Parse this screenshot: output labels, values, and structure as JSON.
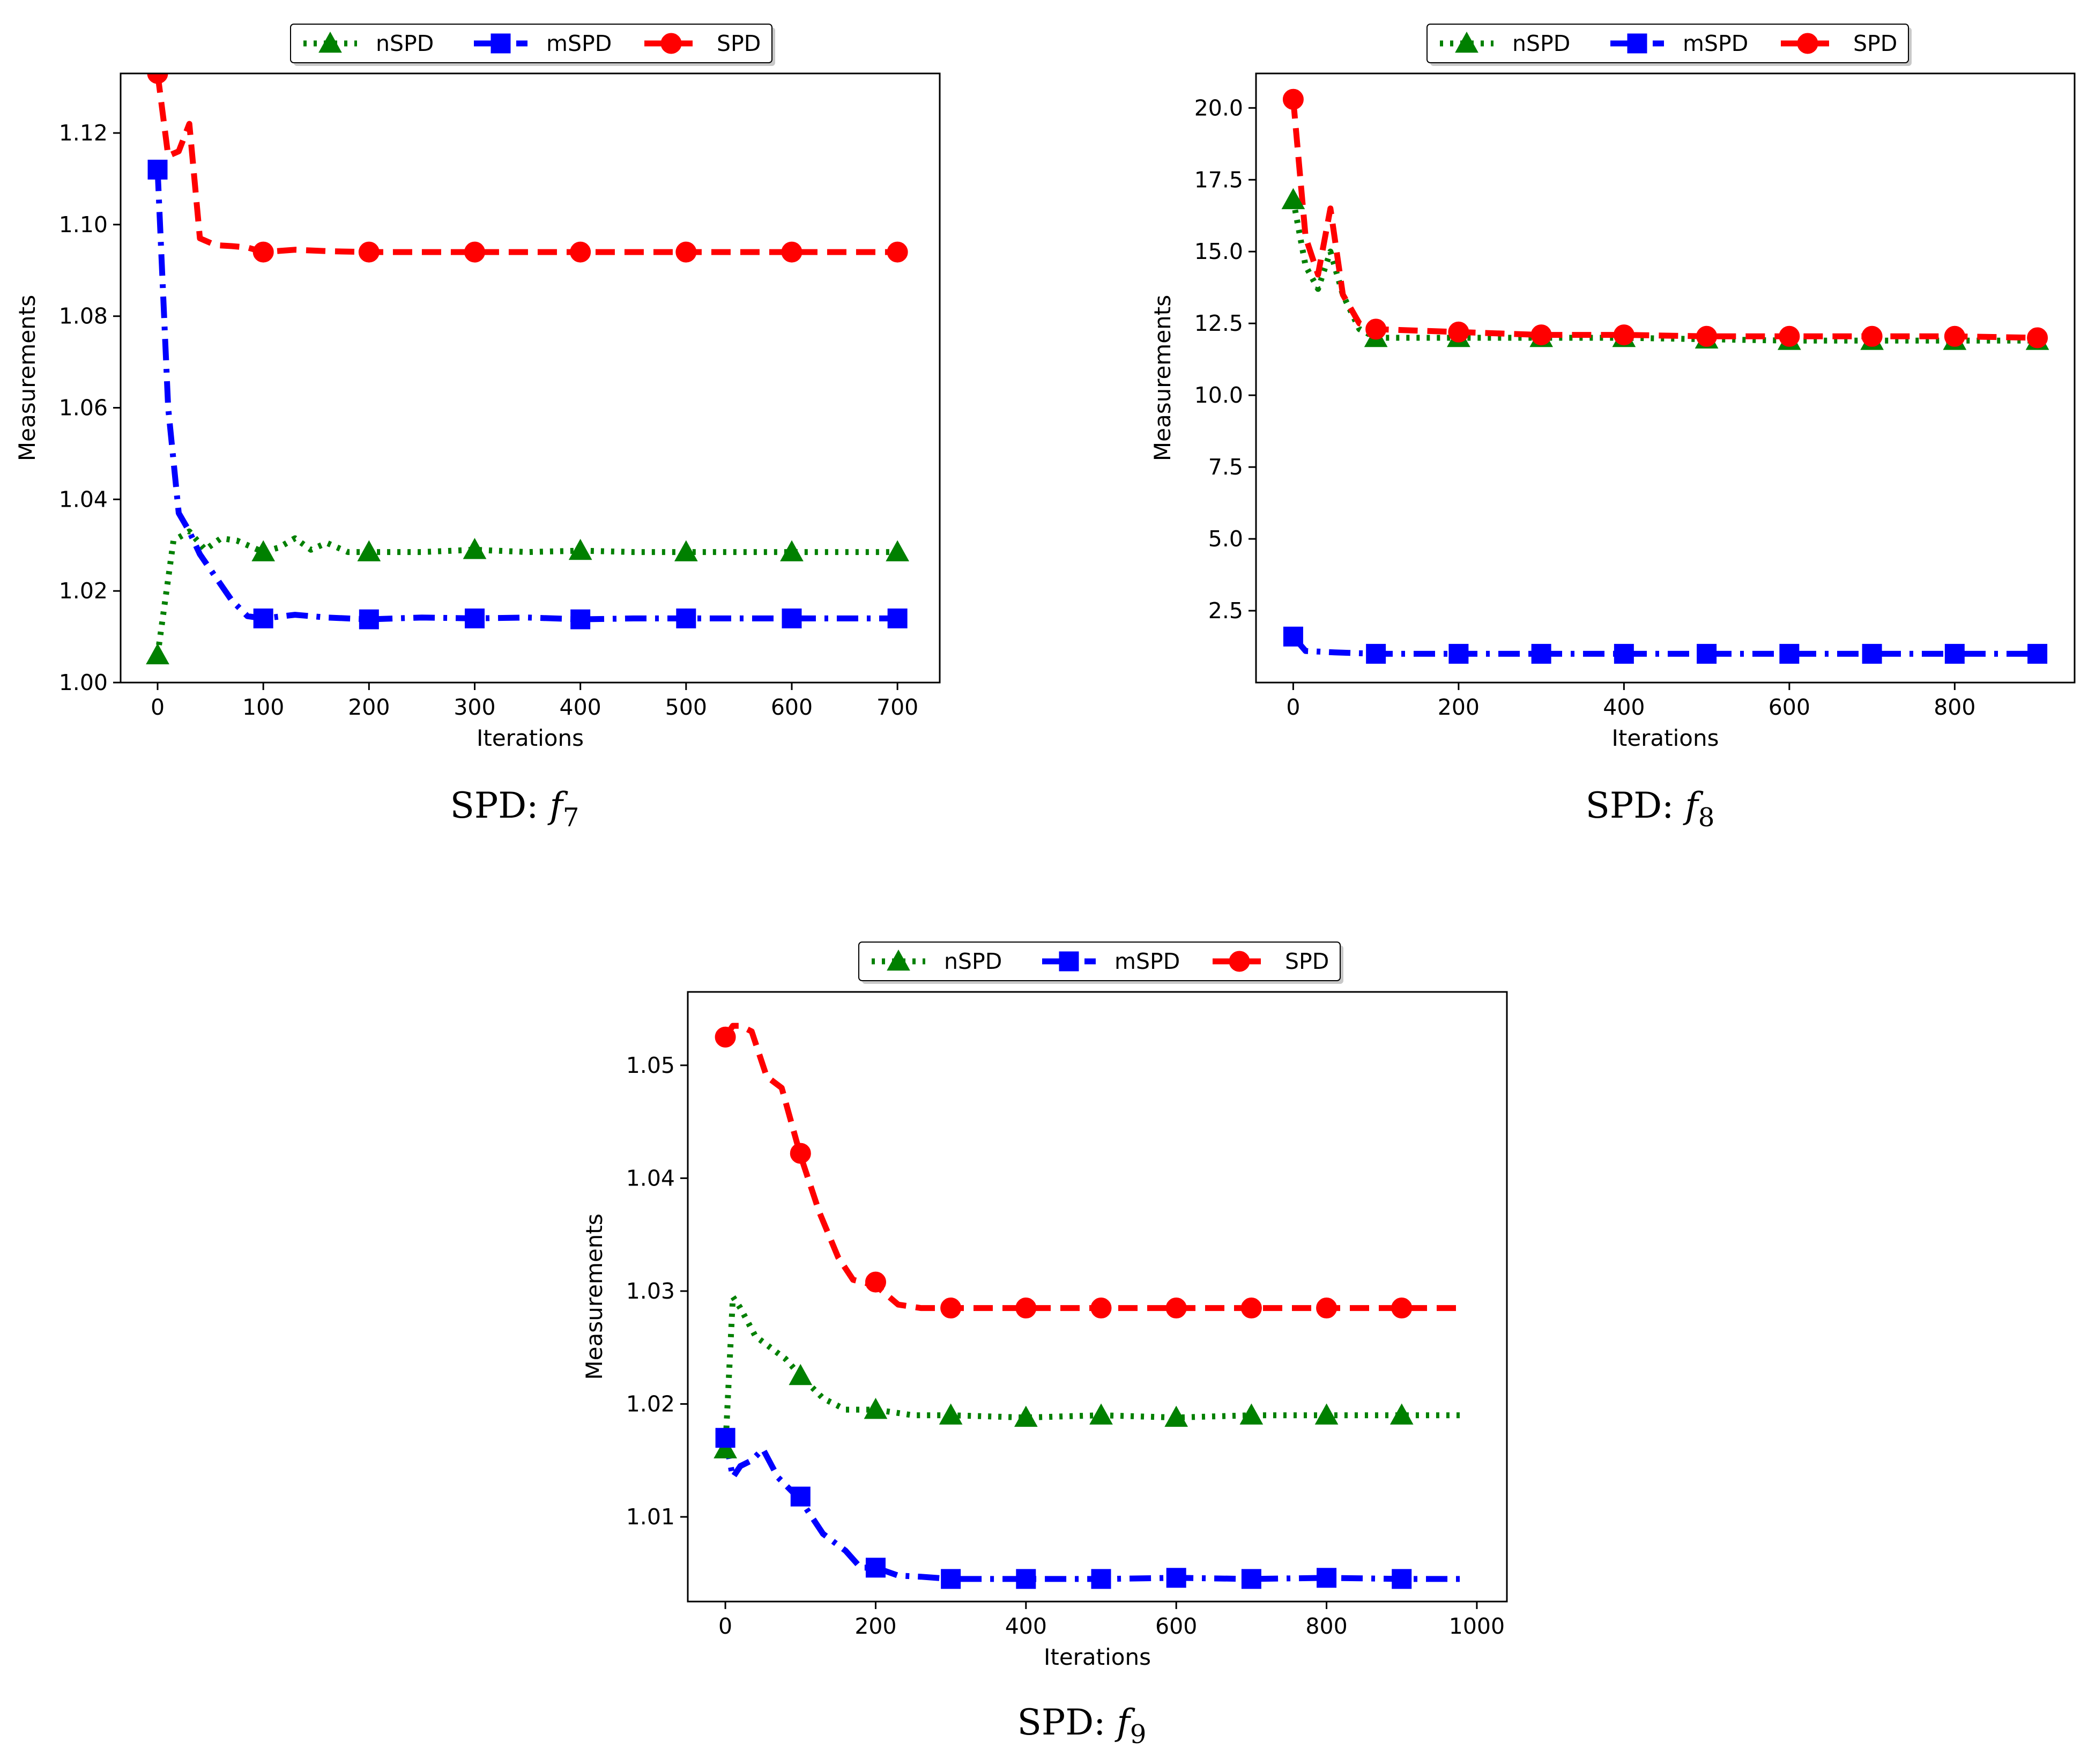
{
  "colors": {
    "nSPD": "#008000",
    "mSPD": "#0000ff",
    "SPD": "#ff0000"
  },
  "chart_data": [
    {
      "type": "line",
      "caption_prefix": "SPD: ",
      "caption_func": "f",
      "caption_sub": "7",
      "xlabel": "Iterations",
      "ylabel": "Measurements",
      "xlim": [
        -35,
        740
      ],
      "ylim": [
        1.0,
        1.133
      ],
      "xticks": [
        0,
        100,
        200,
        300,
        400,
        500,
        600,
        700
      ],
      "xtick_labels": [
        "0",
        "100",
        "200",
        "300",
        "400",
        "500",
        "600",
        "700"
      ],
      "yticks": [
        1.0,
        1.02,
        1.04,
        1.06,
        1.08,
        1.1,
        1.12
      ],
      "ytick_labels": [
        "1.00",
        "1.02",
        "1.04",
        "1.06",
        "1.08",
        "1.10",
        "1.12"
      ],
      "legend": [
        "nSPD",
        "mSPD",
        "SPD"
      ],
      "legend_position": "top-center",
      "series": [
        {
          "name": "nSPD",
          "marker": "triangle",
          "style": "dotted",
          "x": [
            0,
            15,
            30,
            45,
            60,
            75,
            100,
            115,
            130,
            145,
            160,
            180,
            200,
            250,
            300,
            350,
            400,
            450,
            500,
            550,
            600,
            650,
            700
          ],
          "y": [
            1.006,
            1.031,
            1.033,
            1.029,
            1.0315,
            1.031,
            1.0285,
            1.0295,
            1.0315,
            1.029,
            1.0305,
            1.0285,
            1.0285,
            1.0285,
            1.029,
            1.0285,
            1.0288,
            1.0285,
            1.0285,
            1.0285,
            1.0285,
            1.0285,
            1.0285
          ],
          "marker_x": [
            0,
            100,
            200,
            300,
            400,
            500,
            600,
            700
          ],
          "marker_y": [
            1.006,
            1.0285,
            1.0285,
            1.029,
            1.0288,
            1.0285,
            1.0285,
            1.0285
          ]
        },
        {
          "name": "mSPD",
          "marker": "square",
          "style": "dashdot",
          "x": [
            0,
            10,
            20,
            30,
            40,
            55,
            70,
            85,
            100,
            130,
            160,
            200,
            250,
            300,
            350,
            400,
            450,
            500,
            550,
            600,
            650,
            700
          ],
          "y": [
            1.112,
            1.06,
            1.037,
            1.033,
            1.028,
            1.023,
            1.018,
            1.0145,
            1.014,
            1.0148,
            1.0142,
            1.0138,
            1.0142,
            1.014,
            1.0142,
            1.0138,
            1.014,
            1.014,
            1.014,
            1.014,
            1.014,
            1.014
          ],
          "marker_x": [
            0,
            100,
            200,
            300,
            400,
            500,
            600,
            700
          ],
          "marker_y": [
            1.112,
            1.014,
            1.0138,
            1.014,
            1.0138,
            1.014,
            1.014,
            1.014
          ]
        },
        {
          "name": "SPD",
          "marker": "circle",
          "style": "dashed",
          "x": [
            0,
            10,
            20,
            30,
            40,
            55,
            70,
            85,
            100,
            130,
            160,
            200,
            250,
            300,
            350,
            400,
            450,
            500,
            550,
            600,
            650,
            700
          ],
          "y": [
            1.133,
            1.115,
            1.116,
            1.122,
            1.097,
            1.0955,
            1.0953,
            1.095,
            1.094,
            1.0945,
            1.0942,
            1.094,
            1.094,
            1.094,
            1.094,
            1.094,
            1.094,
            1.094,
            1.094,
            1.094,
            1.094,
            1.094
          ],
          "marker_x": [
            0,
            100,
            200,
            300,
            400,
            500,
            600,
            700
          ],
          "marker_y": [
            1.133,
            1.094,
            1.094,
            1.094,
            1.094,
            1.094,
            1.094,
            1.094
          ]
        }
      ]
    },
    {
      "type": "line",
      "caption_prefix": "SPD: ",
      "caption_func": "f",
      "caption_sub": "8",
      "xlabel": "Iterations",
      "ylabel": "Measurements",
      "xlim": [
        -45,
        945
      ],
      "ylim": [
        0.0,
        21.2
      ],
      "xticks": [
        0,
        200,
        400,
        600,
        800
      ],
      "xtick_labels": [
        "0",
        "200",
        "400",
        "600",
        "800"
      ],
      "yticks": [
        2.5,
        5.0,
        7.5,
        10.0,
        12.5,
        15.0,
        17.5,
        20.0
      ],
      "ytick_labels": [
        "2.5",
        "5.0",
        "7.5",
        "10.0",
        "12.5",
        "15.0",
        "17.5",
        "20.0"
      ],
      "legend": [
        "nSPD",
        "mSPD",
        "SPD"
      ],
      "legend_position": "top-center",
      "series": [
        {
          "name": "nSPD",
          "marker": "triangle",
          "style": "dotted",
          "x": [
            0,
            15,
            30,
            45,
            60,
            80,
            100,
            200,
            300,
            400,
            500,
            600,
            700,
            800,
            900
          ],
          "y": [
            16.8,
            14.5,
            13.7,
            15.0,
            13.5,
            12.3,
            12.0,
            12.0,
            12.0,
            12.0,
            11.95,
            11.9,
            11.9,
            11.9,
            11.9
          ],
          "marker_x": [
            0,
            100,
            200,
            300,
            400,
            500,
            600,
            700,
            800,
            900
          ],
          "marker_y": [
            16.8,
            12.0,
            12.0,
            12.0,
            12.0,
            11.95,
            11.9,
            11.9,
            11.9,
            11.9
          ]
        },
        {
          "name": "mSPD",
          "marker": "square",
          "style": "dashdot",
          "x": [
            0,
            15,
            50,
            100,
            200,
            300,
            400,
            500,
            600,
            700,
            800,
            900
          ],
          "y": [
            1.6,
            1.1,
            1.05,
            1.0,
            1.0,
            1.0,
            1.0,
            1.0,
            1.0,
            1.0,
            1.0,
            1.0
          ],
          "marker_x": [
            0,
            100,
            200,
            300,
            400,
            500,
            600,
            700,
            800,
            900
          ],
          "marker_y": [
            1.6,
            1.0,
            1.0,
            1.0,
            1.0,
            1.0,
            1.0,
            1.0,
            1.0,
            1.0
          ]
        },
        {
          "name": "SPD",
          "marker": "circle",
          "style": "dashed",
          "x": [
            0,
            15,
            30,
            45,
            60,
            80,
            100,
            200,
            300,
            400,
            500,
            600,
            700,
            800,
            900
          ],
          "y": [
            20.3,
            15.5,
            14.2,
            16.5,
            13.5,
            12.5,
            12.3,
            12.2,
            12.1,
            12.1,
            12.05,
            12.05,
            12.05,
            12.05,
            12.0
          ],
          "marker_x": [
            0,
            100,
            200,
            300,
            400,
            500,
            600,
            700,
            800,
            900
          ],
          "marker_y": [
            20.3,
            12.3,
            12.2,
            12.1,
            12.1,
            12.05,
            12.05,
            12.05,
            12.05,
            12.0
          ]
        }
      ]
    },
    {
      "type": "line",
      "caption_prefix": "SPD: ",
      "caption_func": "f",
      "caption_sub": "9",
      "xlabel": "Iterations",
      "ylabel": "Measurements",
      "xlim": [
        -50,
        1040
      ],
      "ylim": [
        1.0025,
        1.0565
      ],
      "xticks": [
        0,
        200,
        400,
        600,
        800,
        1000
      ],
      "xtick_labels": [
        "0",
        "200",
        "400",
        "600",
        "800",
        "1000"
      ],
      "yticks": [
        1.01,
        1.02,
        1.03,
        1.04,
        1.05
      ],
      "ytick_labels": [
        "1.01",
        "1.02",
        "1.03",
        "1.04",
        "1.05"
      ],
      "legend": [
        "nSPD",
        "mSPD",
        "SPD"
      ],
      "legend_position": "top-center",
      "series": [
        {
          "name": "nSPD",
          "marker": "triangle",
          "style": "dotted",
          "x": [
            0,
            10,
            20,
            40,
            60,
            80,
            100,
            130,
            160,
            200,
            250,
            300,
            400,
            500,
            600,
            700,
            800,
            900,
            980
          ],
          "y": [
            1.016,
            1.0295,
            1.0285,
            1.026,
            1.025,
            1.024,
            1.0225,
            1.0205,
            1.0195,
            1.0195,
            1.019,
            1.019,
            1.0188,
            1.019,
            1.0188,
            1.019,
            1.019,
            1.019,
            1.019
          ],
          "marker_x": [
            0,
            100,
            200,
            300,
            400,
            500,
            600,
            700,
            800,
            900
          ],
          "marker_y": [
            1.016,
            1.0225,
            1.0195,
            1.019,
            1.0188,
            1.019,
            1.0188,
            1.019,
            1.019,
            1.019
          ]
        },
        {
          "name": "mSPD",
          "marker": "square",
          "style": "dashdot",
          "x": [
            0,
            10,
            20,
            35,
            50,
            70,
            100,
            130,
            160,
            180,
            200,
            230,
            260,
            300,
            400,
            500,
            600,
            700,
            800,
            900,
            980
          ],
          "y": [
            1.017,
            1.0135,
            1.0145,
            1.015,
            1.016,
            1.0135,
            1.0115,
            1.0085,
            1.007,
            1.0055,
            1.0055,
            1.0048,
            1.0047,
            1.0045,
            1.0045,
            1.0045,
            1.0046,
            1.0045,
            1.0046,
            1.0045,
            1.0045
          ],
          "marker_x": [
            0,
            100,
            200,
            300,
            400,
            500,
            600,
            700,
            800,
            900
          ],
          "marker_y": [
            1.017,
            1.0118,
            1.0055,
            1.0045,
            1.0045,
            1.0045,
            1.0046,
            1.0045,
            1.0046,
            1.0045
          ]
        },
        {
          "name": "SPD",
          "marker": "circle",
          "style": "dashed",
          "x": [
            0,
            10,
            20,
            35,
            55,
            75,
            100,
            125,
            150,
            170,
            200,
            230,
            260,
            300,
            400,
            500,
            600,
            700,
            800,
            900,
            980
          ],
          "y": [
            1.0525,
            1.0535,
            1.0535,
            1.053,
            1.049,
            1.048,
            1.042,
            1.037,
            1.033,
            1.031,
            1.0305,
            1.0288,
            1.0285,
            1.0285,
            1.0285,
            1.0285,
            1.0285,
            1.0285,
            1.0285,
            1.0285,
            1.0285
          ],
          "marker_x": [
            0,
            100,
            200,
            300,
            400,
            500,
            600,
            700,
            800,
            900
          ],
          "marker_y": [
            1.0525,
            1.0422,
            1.0308,
            1.0285,
            1.0285,
            1.0285,
            1.0285,
            1.0285,
            1.0285,
            1.0285
          ]
        }
      ]
    }
  ]
}
